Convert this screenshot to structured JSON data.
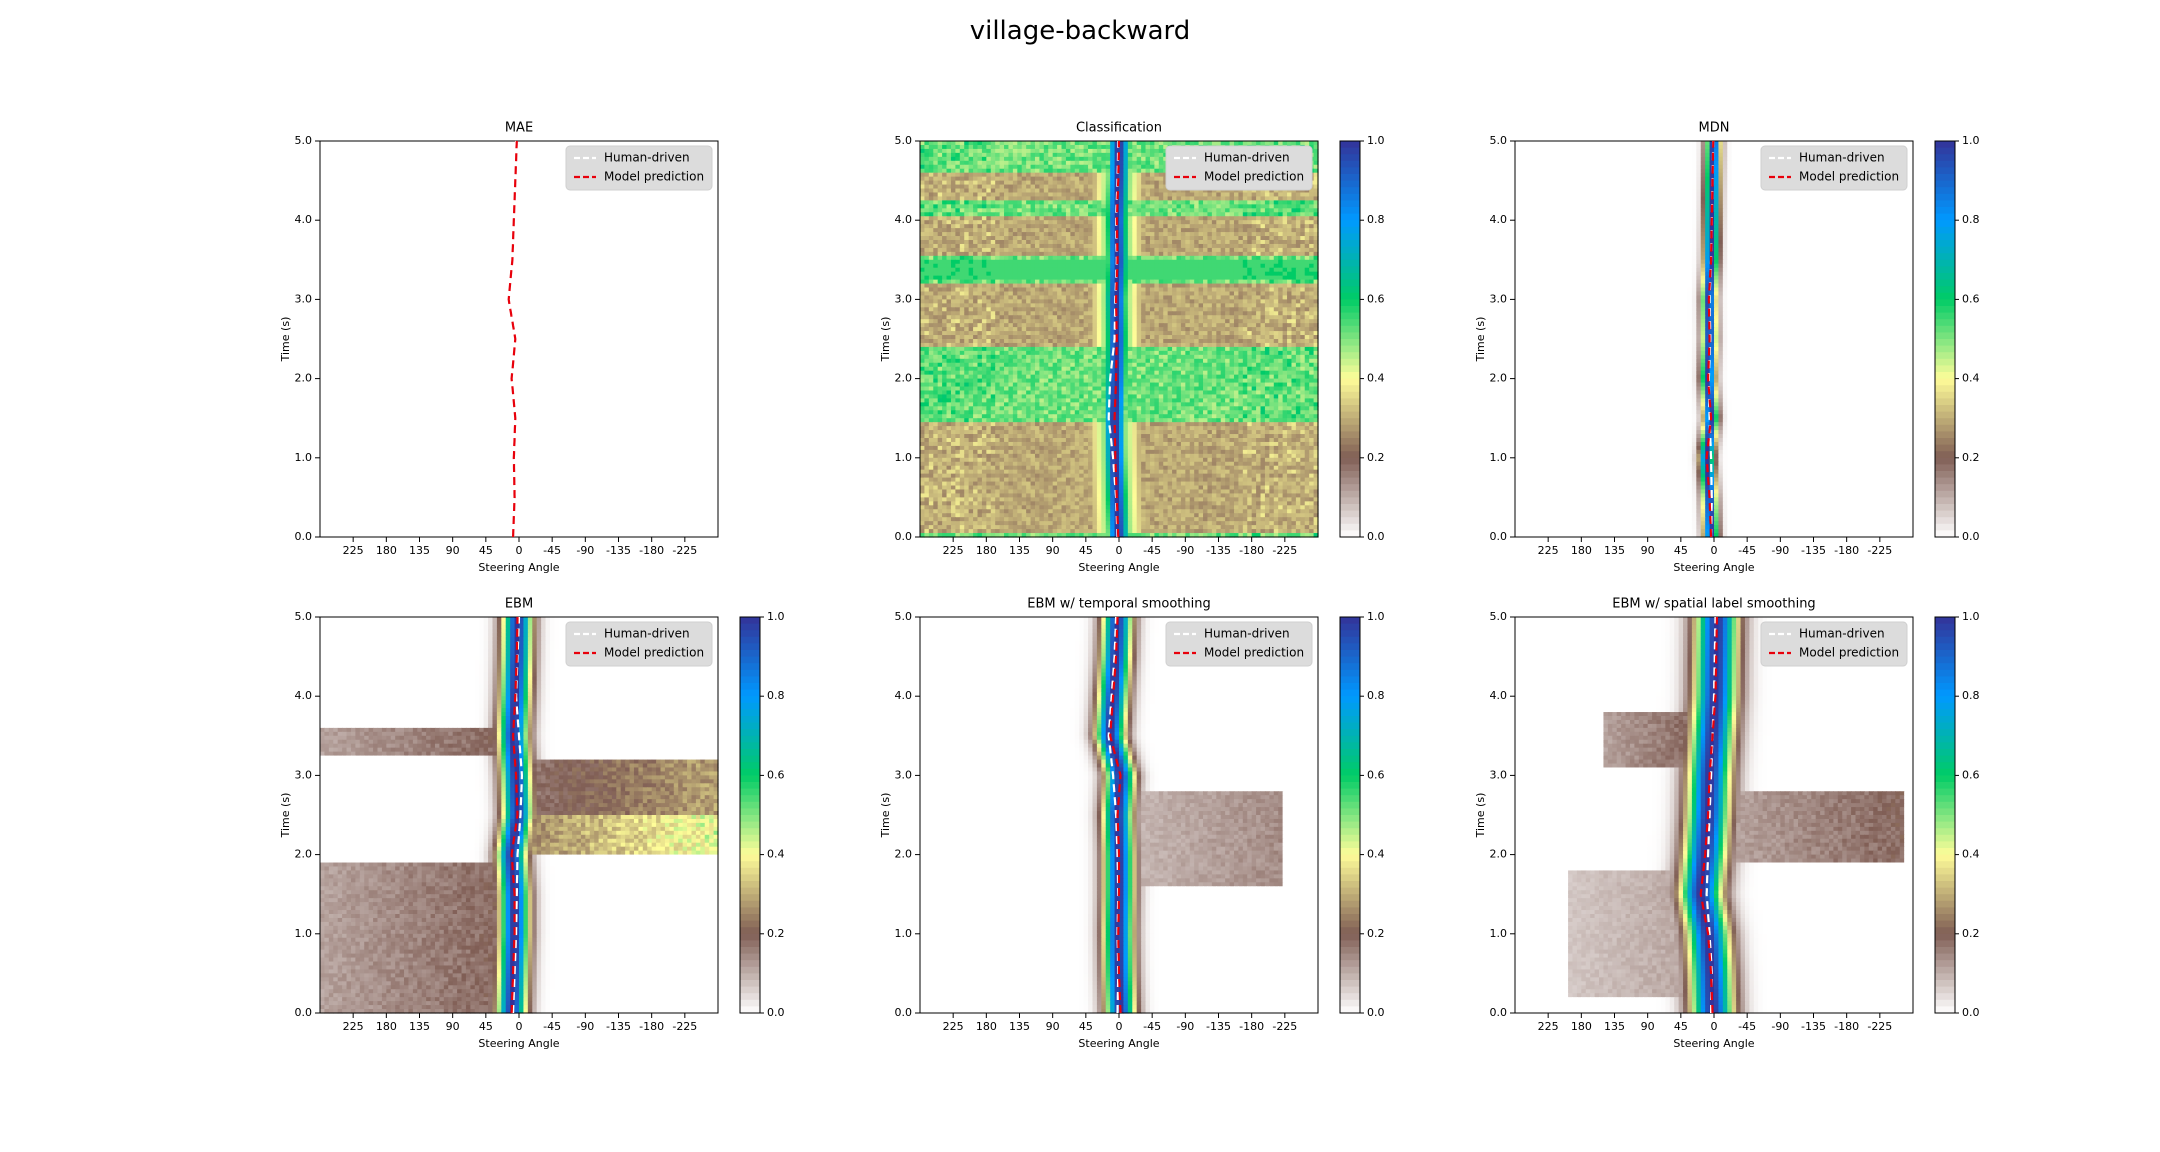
{
  "figure_title": "village-backward",
  "chart_data": [
    {
      "type": "heatmap",
      "title": "MAE",
      "colorbar": false,
      "xlabel": "Steering Angle",
      "ylabel": "Time (s)",
      "xlim": [
        270,
        -270
      ],
      "ylim": [
        0,
        5
      ],
      "xticks": [
        225,
        180,
        135,
        90,
        45,
        0,
        -45,
        -90,
        -135,
        -180,
        -225
      ],
      "xtick_labels": [
        "225",
        "180",
        "135",
        "90",
        "45",
        "0",
        "-45",
        "-90",
        "-135",
        "-180",
        "-225"
      ],
      "yticks": [
        0,
        1,
        2,
        3,
        4,
        5
      ],
      "ytick_labels": [
        "0.0",
        "1.0",
        "2.0",
        "3.0",
        "4.0",
        "5.0"
      ],
      "legend": [
        "Human-driven",
        "Model prediction"
      ],
      "legend_position": "upper right",
      "series": [
        {
          "name": "Human-driven",
          "t": [
            0,
            0.5,
            1,
            1.5,
            2,
            2.5,
            3,
            3.5,
            4,
            4.5,
            5
          ],
          "angle": [
            8,
            7,
            6,
            6,
            9,
            7,
            12,
            10,
            8,
            6,
            4
          ]
        },
        {
          "name": "Model prediction",
          "t": [
            0,
            0.5,
            1,
            1.5,
            2,
            2.5,
            3,
            3.5,
            4,
            4.5,
            5
          ],
          "angle": [
            8,
            6,
            7,
            5,
            10,
            5,
            14,
            9,
            7,
            5,
            3
          ]
        }
      ],
      "density": null
    },
    {
      "type": "heatmap",
      "title": "Classification",
      "colorbar": true,
      "colorbar_ticks": [
        "0.0",
        "0.2",
        "0.4",
        "0.6",
        "0.8",
        "1.0"
      ],
      "xlabel": "Steering Angle",
      "ylabel": "Time (s)",
      "xlim": [
        270,
        -270
      ],
      "ylim": [
        0,
        5
      ],
      "xticks": [
        225,
        180,
        135,
        90,
        45,
        0,
        -45,
        -90,
        -135,
        -180,
        -225
      ],
      "xtick_labels": [
        "225",
        "180",
        "135",
        "90",
        "45",
        "0",
        "-45",
        "-90",
        "-135",
        "-180",
        "-225"
      ],
      "yticks": [
        0,
        1,
        2,
        3,
        4,
        5
      ],
      "ytick_labels": [
        "0.0",
        "1.0",
        "2.0",
        "3.0",
        "4.0",
        "5.0"
      ],
      "legend": [
        "Human-driven",
        "Model prediction"
      ],
      "legend_position": "upper right",
      "series": [
        {
          "name": "Human-driven",
          "t": [
            0,
            0.5,
            1,
            1.5,
            2,
            2.5,
            3,
            3.5,
            4,
            4.5,
            5
          ],
          "angle": [
            2,
            4,
            8,
            14,
            12,
            6,
            5,
            3,
            4,
            2,
            1
          ]
        },
        {
          "name": "Model prediction",
          "t": [
            0,
            0.5,
            1,
            1.5,
            2,
            2.5,
            3,
            3.5,
            4,
            4.5,
            5
          ],
          "angle": [
            1,
            3,
            5,
            6,
            4,
            3,
            4,
            2,
            3,
            1,
            0
          ]
        }
      ],
      "density": {
        "model": "classification",
        "levels": {
          "peak": 1.0,
          "background_dark": 0.25,
          "background_light": 0.45,
          "band_rows": 0.55
        },
        "dark_time_bands": [
          [
            0.05,
            1.45
          ],
          [
            2.4,
            3.2
          ],
          [
            3.55,
            4.05
          ],
          [
            4.25,
            4.6
          ]
        ],
        "bright_time_bands": [
          [
            3.25,
            3.5
          ]
        ]
      }
    },
    {
      "type": "heatmap",
      "title": "MDN",
      "colorbar": true,
      "colorbar_ticks": [
        "0.0",
        "0.2",
        "0.4",
        "0.6",
        "0.8",
        "1.0"
      ],
      "xlabel": "Steering Angle",
      "ylabel": "Time (s)",
      "xlim": [
        270,
        -270
      ],
      "ylim": [
        0,
        5
      ],
      "xticks": [
        225,
        180,
        135,
        90,
        45,
        0,
        -45,
        -90,
        -135,
        -180,
        -225
      ],
      "xtick_labels": [
        "225",
        "180",
        "135",
        "90",
        "45",
        "0",
        "-45",
        "-90",
        "-135",
        "-180",
        "-225"
      ],
      "yticks": [
        0,
        1,
        2,
        3,
        4,
        5
      ],
      "ytick_labels": [
        "0.0",
        "1.0",
        "2.0",
        "3.0",
        "4.0",
        "5.0"
      ],
      "legend": [
        "Human-driven",
        "Model prediction"
      ],
      "legend_position": "upper right",
      "series": [
        {
          "name": "Human-driven",
          "t": [
            0,
            0.5,
            1,
            1.5,
            2,
            2.5,
            3,
            3.5,
            4,
            4.5,
            5
          ],
          "angle": [
            4,
            3,
            4,
            6,
            7,
            5,
            6,
            4,
            3,
            2,
            1
          ]
        },
        {
          "name": "Model prediction",
          "t": [
            0,
            0.5,
            1,
            1.5,
            2,
            2.5,
            3,
            3.5,
            4,
            4.5,
            5
          ],
          "angle": [
            4,
            6,
            10,
            4,
            8,
            6,
            7,
            4,
            3,
            2,
            1
          ]
        }
      ],
      "density": {
        "model": "narrow",
        "width_deg": 7
      }
    },
    {
      "type": "heatmap",
      "title": "EBM",
      "colorbar": true,
      "colorbar_ticks": [
        "0.0",
        "0.2",
        "0.4",
        "0.6",
        "0.8",
        "1.0"
      ],
      "xlabel": "Steering Angle",
      "ylabel": "Time (s)",
      "xlim": [
        270,
        -270
      ],
      "ylim": [
        0,
        5
      ],
      "xticks": [
        225,
        180,
        135,
        90,
        45,
        0,
        -45,
        -90,
        -135,
        -180,
        -225
      ],
      "xtick_labels": [
        "225",
        "180",
        "135",
        "90",
        "45",
        "0",
        "-45",
        "-90",
        "-135",
        "-180",
        "-225"
      ],
      "yticks": [
        0,
        1,
        2,
        3,
        4,
        5
      ],
      "ytick_labels": [
        "0.0",
        "1.0",
        "2.0",
        "3.0",
        "4.0",
        "5.0"
      ],
      "legend": [
        "Human-driven",
        "Model prediction"
      ],
      "legend_position": "upper right",
      "series": [
        {
          "name": "Human-driven",
          "t": [
            0,
            0.5,
            1,
            1.5,
            2,
            2.5,
            3,
            3.5,
            4,
            4.5,
            5
          ],
          "angle": [
            8,
            6,
            4,
            3,
            2,
            -2,
            -4,
            0,
            4,
            2,
            0
          ]
        },
        {
          "name": "Model prediction",
          "t": [
            0,
            0.5,
            1,
            1.5,
            2,
            2.5,
            3,
            3.5,
            4,
            4.5,
            5
          ],
          "angle": [
            10,
            8,
            6,
            6,
            10,
            2,
            4,
            8,
            5,
            3,
            2
          ]
        }
      ],
      "density": {
        "model": "ebm",
        "width_deg": 14,
        "side_bands": [
          {
            "t": [
              0.0,
              1.9
            ],
            "from": 270,
            "to": 20,
            "level": 0.2
          },
          {
            "t": [
              3.25,
              3.6
            ],
            "from": 270,
            "to": 20,
            "level": 0.2
          },
          {
            "t": [
              2.0,
              2.5
            ],
            "from": -10,
            "to": -270,
            "level": 0.45
          },
          {
            "t": [
              2.5,
              3.2
            ],
            "from": -10,
            "to": -270,
            "level": 0.3
          }
        ]
      }
    },
    {
      "type": "heatmap",
      "title": "EBM w/ temporal smoothing",
      "colorbar": true,
      "colorbar_ticks": [
        "0.0",
        "0.2",
        "0.4",
        "0.6",
        "0.8",
        "1.0"
      ],
      "xlabel": "Steering Angle",
      "ylabel": "Time (s)",
      "xlim": [
        270,
        -270
      ],
      "ylim": [
        0,
        5
      ],
      "xticks": [
        225,
        180,
        135,
        90,
        45,
        0,
        -45,
        -90,
        -135,
        -180,
        -225
      ],
      "xtick_labels": [
        "225",
        "180",
        "135",
        "90",
        "45",
        "0",
        "-45",
        "-90",
        "-135",
        "-180",
        "-225"
      ],
      "yticks": [
        0,
        1,
        2,
        3,
        4,
        5
      ],
      "ytick_labels": [
        "0.0",
        "1.0",
        "2.0",
        "3.0",
        "4.0",
        "5.0"
      ],
      "legend": [
        "Human-driven",
        "Model prediction"
      ],
      "legend_position": "upper right",
      "series": [
        {
          "name": "Human-driven",
          "t": [
            0,
            0.5,
            1,
            1.5,
            2,
            2.5,
            3,
            3.5,
            4,
            4.5,
            5
          ],
          "angle": [
            2,
            1,
            2,
            1,
            2,
            4,
            8,
            14,
            10,
            6,
            4
          ]
        },
        {
          "name": "Model prediction",
          "t": [
            0,
            0.5,
            1,
            1.5,
            2,
            2.5,
            3,
            3.5,
            4,
            4.5,
            5
          ],
          "angle": [
            -2,
            0,
            1,
            0,
            0,
            2,
            -2,
            12,
            8,
            4,
            2
          ]
        }
      ],
      "density": {
        "model": "ebm",
        "width_deg": 14,
        "side_bands": [
          {
            "t": [
              1.6,
              2.8
            ],
            "from": 0,
            "to": -220,
            "level": 0.15
          }
        ]
      }
    },
    {
      "type": "heatmap",
      "title": "EBM w/ spatial label smoothing",
      "colorbar": true,
      "colorbar_ticks": [
        "0.0",
        "0.2",
        "0.4",
        "0.6",
        "0.8",
        "1.0"
      ],
      "xlabel": "Steering Angle",
      "ylabel": "Time (s)",
      "xlim": [
        270,
        -270
      ],
      "ylim": [
        0,
        5
      ],
      "xticks": [
        225,
        180,
        135,
        90,
        45,
        0,
        -45,
        -90,
        -135,
        -180,
        -225
      ],
      "xtick_labels": [
        "225",
        "180",
        "135",
        "90",
        "45",
        "0",
        "-45",
        "-90",
        "-135",
        "-180",
        "-225"
      ],
      "yticks": [
        0,
        1,
        2,
        3,
        4,
        5
      ],
      "ytick_labels": [
        "0.0",
        "1.0",
        "2.0",
        "3.0",
        "4.0",
        "5.0"
      ],
      "legend": [
        "Human-driven",
        "Model prediction"
      ],
      "legend_position": "upper right",
      "series": [
        {
          "name": "Human-driven",
          "t": [
            0,
            0.5,
            1,
            1.5,
            2,
            2.5,
            3,
            3.5,
            4,
            4.5,
            5
          ],
          "angle": [
            4,
            3,
            6,
            10,
            8,
            6,
            4,
            2,
            0,
            -1,
            -2
          ]
        },
        {
          "name": "Model prediction",
          "t": [
            0,
            0.5,
            1,
            1.5,
            2,
            2.5,
            3,
            3.5,
            4,
            4.5,
            5
          ],
          "angle": [
            2,
            4,
            8,
            18,
            12,
            8,
            6,
            2,
            -2,
            -3,
            -4
          ]
        }
      ],
      "density": {
        "model": "ebm",
        "width_deg": 20,
        "side_bands": [
          {
            "t": [
              3.1,
              3.8
            ],
            "from": 150,
            "to": 20,
            "level": 0.2
          },
          {
            "t": [
              0.2,
              1.8
            ],
            "from": 200,
            "to": 20,
            "level": 0.12
          },
          {
            "t": [
              1.9,
              2.8
            ],
            "from": -20,
            "to": -260,
            "level": 0.2
          }
        ]
      }
    }
  ]
}
